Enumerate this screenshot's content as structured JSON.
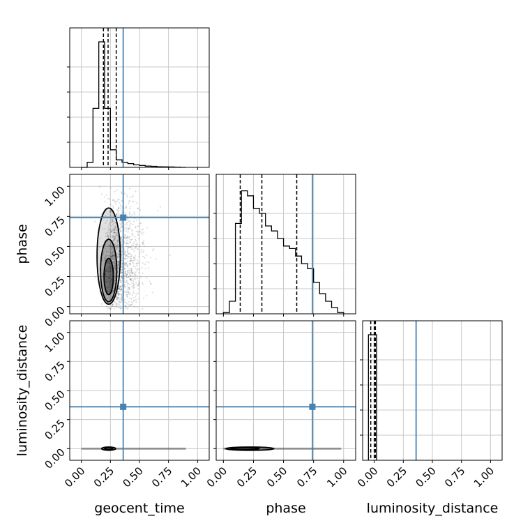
{
  "chart_data": {
    "type": "corner",
    "parameters": [
      "geocent_time",
      "phase",
      "luminosity_distance"
    ],
    "axis_labels": {
      "geocent_time": "geocent_time",
      "phase": "phase",
      "luminosity_distance": "luminosity_distance"
    },
    "tick_values": [
      0.0,
      0.25,
      0.5,
      0.75,
      1.0
    ],
    "tick_labels": [
      "0.00",
      "0.25",
      "0.50",
      "0.75",
      "1.00"
    ],
    "axis_ranges": {
      "geocent_time": [
        -0.1,
        1.1
      ],
      "phase": [
        -0.06,
        1.1
      ],
      "luminosity_distance": [
        -0.1,
        1.1
      ]
    },
    "grid": true,
    "truths": {
      "geocent_time": 0.36,
      "phase": 0.74,
      "luminosity_distance": 0.36
    },
    "truth_color": "#4682b4",
    "histograms": {
      "geocent_time": {
        "bin_edges": [
          0.0,
          0.05,
          0.1,
          0.15,
          0.2,
          0.25,
          0.3,
          0.35,
          0.4,
          0.45,
          0.5,
          0.55,
          0.6,
          0.65,
          0.7,
          0.75,
          0.8,
          0.85,
          0.9
        ],
        "counts": [
          0.0,
          0.04,
          0.47,
          1.0,
          0.47,
          0.14,
          0.06,
          0.04,
          0.03,
          0.02,
          0.015,
          0.01,
          0.008,
          0.005,
          0.004,
          0.003,
          0.002,
          0.0
        ],
        "quantiles": [
          0.19,
          0.23,
          0.3
        ]
      },
      "phase": {
        "bin_edges": [
          0.0,
          0.05,
          0.1,
          0.15,
          0.2,
          0.25,
          0.3,
          0.35,
          0.4,
          0.45,
          0.5,
          0.55,
          0.6,
          0.65,
          0.7,
          0.75,
          0.8,
          0.85,
          0.9,
          0.95,
          1.0
        ],
        "counts": [
          0.01,
          0.1,
          0.72,
          0.98,
          0.94,
          0.84,
          0.8,
          0.7,
          0.66,
          0.6,
          0.54,
          0.52,
          0.46,
          0.4,
          0.36,
          0.25,
          0.16,
          0.1,
          0.05,
          0.01
        ],
        "quantiles": [
          0.14,
          0.32,
          0.61
        ]
      },
      "luminosity_distance": {
        "bin_edges": [
          -0.05,
          0.0,
          0.02
        ],
        "counts": [
          1.0,
          1.0
        ],
        "quantiles": [
          -0.03,
          0.0,
          0.01
        ]
      }
    },
    "scatter_samples": {
      "geocent_time_vs_phase": {
        "x_center": 0.28,
        "x_spread": 0.12,
        "y_center": 0.35,
        "y_spread": 0.28,
        "count": 1400
      }
    },
    "contours": {
      "geocent_time_vs_phase": [
        {
          "cx": 0.235,
          "cy": 0.42,
          "rx": 0.1,
          "ry": 0.4
        },
        {
          "cx": 0.235,
          "cy": 0.3,
          "rx": 0.07,
          "ry": 0.26
        },
        {
          "cx": 0.235,
          "cy": 0.25,
          "rx": 0.04,
          "ry": 0.15
        }
      ],
      "geocent_time_vs_luminosity_distance": [
        {
          "cx": 0.235,
          "cy": 0.0,
          "rx": 0.06,
          "ry": 0.014
        },
        {
          "cx": 0.235,
          "cy": 0.0,
          "rx": 0.035,
          "ry": 0.008
        }
      ],
      "phase_vs_luminosity_distance": [
        {
          "cx": 0.22,
          "cy": 0.0,
          "rx": 0.2,
          "ry": 0.014
        },
        {
          "cx": 0.18,
          "cy": 0.0,
          "rx": 0.12,
          "ry": 0.008
        }
      ]
    }
  }
}
